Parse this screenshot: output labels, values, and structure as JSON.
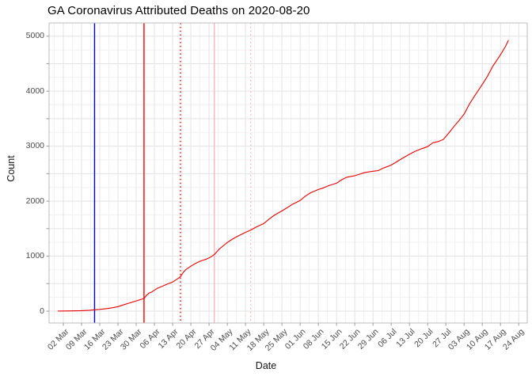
{
  "chart_data": {
    "type": "line",
    "title": "GA Coronavirus Attributed Deaths on 2020-08-20",
    "xlabel": "Date",
    "ylabel": "Count",
    "legend": "none",
    "grid": "major weekly (x) and 500-count (y) light gray lines with fainter mid-week / 250-count minor lines on white panel",
    "x_tick_labels": [
      "02 Mar",
      "09 Mar",
      "16 Mar",
      "23 Mar",
      "30 Mar",
      "06 Apr",
      "13 Apr",
      "20 Apr",
      "27 Apr",
      "04 May",
      "11 May",
      "18 May",
      "25 May",
      "01 Jun",
      "08 Jun",
      "15 Jun",
      "22 Jun",
      "29 Jun",
      "06 Jul",
      "13 Jul",
      "20 Jul",
      "27 Jul",
      "03 Aug",
      "10 Aug",
      "17 Aug",
      "24 Aug"
    ],
    "y_tick_labels": [
      "0",
      "1000",
      "2000",
      "3000",
      "4000",
      "5000"
    ],
    "y_ticks": [
      0,
      1000,
      2000,
      3000,
      4000,
      5000
    ],
    "y_minor_tick_step": 500,
    "ylim": [
      0,
      5000
    ],
    "x_range_dates": [
      "2020-03-02",
      "2020-08-24"
    ],
    "series": [
      {
        "name": "cumulative-attributed-deaths",
        "color": "#e60000",
        "points": [
          [
            "2020-02-29",
            2
          ],
          [
            "2020-03-05",
            4
          ],
          [
            "2020-03-09",
            8
          ],
          [
            "2020-03-12",
            16
          ],
          [
            "2020-03-14",
            25
          ],
          [
            "2020-03-16",
            32
          ],
          [
            "2020-03-19",
            48
          ],
          [
            "2020-03-21",
            62
          ],
          [
            "2020-03-23",
            82
          ],
          [
            "2020-03-25",
            112
          ],
          [
            "2020-03-27",
            142
          ],
          [
            "2020-03-29",
            172
          ],
          [
            "2020-03-31",
            200
          ],
          [
            "2020-04-02",
            230
          ],
          [
            "2020-04-03",
            290
          ],
          [
            "2020-04-04",
            330
          ],
          [
            "2020-04-05",
            350
          ],
          [
            "2020-04-06",
            380
          ],
          [
            "2020-04-07",
            412
          ],
          [
            "2020-04-09",
            452
          ],
          [
            "2020-04-11",
            492
          ],
          [
            "2020-04-13",
            530
          ],
          [
            "2020-04-15",
            592
          ],
          [
            "2020-04-16",
            628
          ],
          [
            "2020-04-17",
            700
          ],
          [
            "2020-04-18",
            752
          ],
          [
            "2020-04-20",
            818
          ],
          [
            "2020-04-22",
            872
          ],
          [
            "2020-04-24",
            916
          ],
          [
            "2020-04-26",
            946
          ],
          [
            "2020-04-27",
            968
          ],
          [
            "2020-04-28",
            996
          ],
          [
            "2020-04-29",
            1028
          ],
          [
            "2020-05-01",
            1132
          ],
          [
            "2020-05-03",
            1210
          ],
          [
            "2020-05-04",
            1248
          ],
          [
            "2020-05-06",
            1310
          ],
          [
            "2020-05-08",
            1362
          ],
          [
            "2020-05-11",
            1432
          ],
          [
            "2020-05-13",
            1474
          ],
          [
            "2020-05-15",
            1526
          ],
          [
            "2020-05-18",
            1592
          ],
          [
            "2020-05-20",
            1672
          ],
          [
            "2020-05-22",
            1742
          ],
          [
            "2020-05-25",
            1822
          ],
          [
            "2020-05-27",
            1880
          ],
          [
            "2020-05-29",
            1942
          ],
          [
            "2020-06-01",
            2012
          ],
          [
            "2020-06-03",
            2092
          ],
          [
            "2020-06-05",
            2152
          ],
          [
            "2020-06-08",
            2212
          ],
          [
            "2020-06-10",
            2242
          ],
          [
            "2020-06-12",
            2282
          ],
          [
            "2020-06-15",
            2326
          ],
          [
            "2020-06-17",
            2390
          ],
          [
            "2020-06-19",
            2436
          ],
          [
            "2020-06-22",
            2464
          ],
          [
            "2020-06-24",
            2492
          ],
          [
            "2020-06-26",
            2522
          ],
          [
            "2020-06-29",
            2544
          ],
          [
            "2020-07-01",
            2556
          ],
          [
            "2020-07-03",
            2602
          ],
          [
            "2020-07-06",
            2656
          ],
          [
            "2020-07-08",
            2712
          ],
          [
            "2020-07-10",
            2772
          ],
          [
            "2020-07-13",
            2852
          ],
          [
            "2020-07-15",
            2902
          ],
          [
            "2020-07-17",
            2942
          ],
          [
            "2020-07-20",
            2992
          ],
          [
            "2020-07-22",
            3062
          ],
          [
            "2020-07-24",
            3082
          ],
          [
            "2020-07-26",
            3122
          ],
          [
            "2020-07-28",
            3232
          ],
          [
            "2020-07-30",
            3352
          ],
          [
            "2020-08-01",
            3462
          ],
          [
            "2020-08-03",
            3582
          ],
          [
            "2020-08-05",
            3762
          ],
          [
            "2020-08-07",
            3912
          ],
          [
            "2020-08-10",
            4122
          ],
          [
            "2020-08-12",
            4272
          ],
          [
            "2020-08-14",
            4452
          ],
          [
            "2020-08-17",
            4662
          ],
          [
            "2020-08-18",
            4742
          ],
          [
            "2020-08-19",
            4822
          ],
          [
            "2020-08-20",
            4922
          ]
        ]
      }
    ],
    "reference_lines": [
      {
        "name": "blue-solid-reference-line",
        "date": "2020-03-14",
        "color": "#0000cd",
        "style": "solid"
      },
      {
        "name": "red-solid-reference-line",
        "date": "2020-04-02",
        "color": "#ff0000",
        "style": "solid"
      },
      {
        "name": "red-dotted-reference-line",
        "date": "2020-04-16",
        "color": "#ff0000",
        "style": "dotted"
      },
      {
        "name": "pink-solid-reference-line",
        "date": "2020-04-29",
        "color": "#ffb5c1",
        "style": "solid"
      },
      {
        "name": "pink-dotted-reference-line",
        "date": "2020-05-13",
        "color": "#ffb5c1",
        "style": "dotted"
      }
    ],
    "colors": {
      "data_line": "#e60000",
      "grid_major": "#e3e3e3",
      "grid_minor": "#f1f1f1",
      "panel_border": "#bdbdbd",
      "tick_mark": "#9a9a9a",
      "tick_label": "#4a4a4a",
      "axis_title": "#141414",
      "title": "#000000",
      "background": "#ffffff"
    }
  }
}
